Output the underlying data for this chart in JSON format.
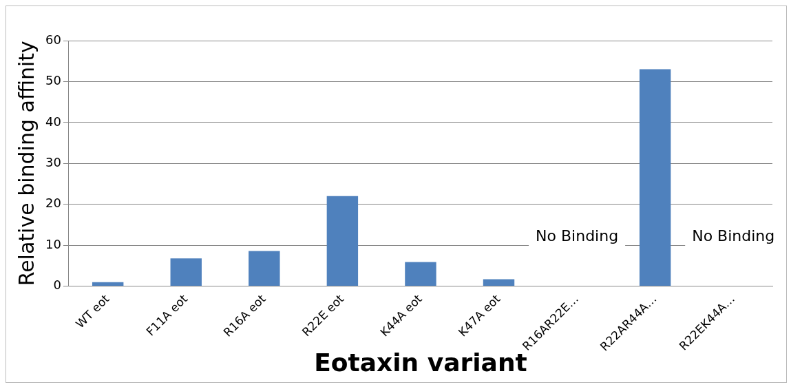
{
  "chart_data": {
    "type": "bar",
    "xlabel": "Eotaxin variant",
    "ylabel": "Relative binding affinity",
    "categories": [
      "WT eot",
      "F11A eot",
      "R16A eot",
      "R22E eot",
      "K44A eot",
      "K47A eot",
      "R16AR22E…",
      "R22AR44A…",
      "R22EK44A…"
    ],
    "series": [
      {
        "color": "#4f81bd",
        "values": [
          1,
          6.8,
          8.6,
          22,
          5.9,
          1.7,
          null,
          53,
          null
        ]
      }
    ],
    "ylim": [
      0,
      60
    ],
    "yticks": [
      0,
      10,
      20,
      30,
      40,
      50,
      60
    ],
    "grid": "y",
    "legend": false,
    "annotations": [
      "No Binding",
      "No Binding"
    ]
  }
}
